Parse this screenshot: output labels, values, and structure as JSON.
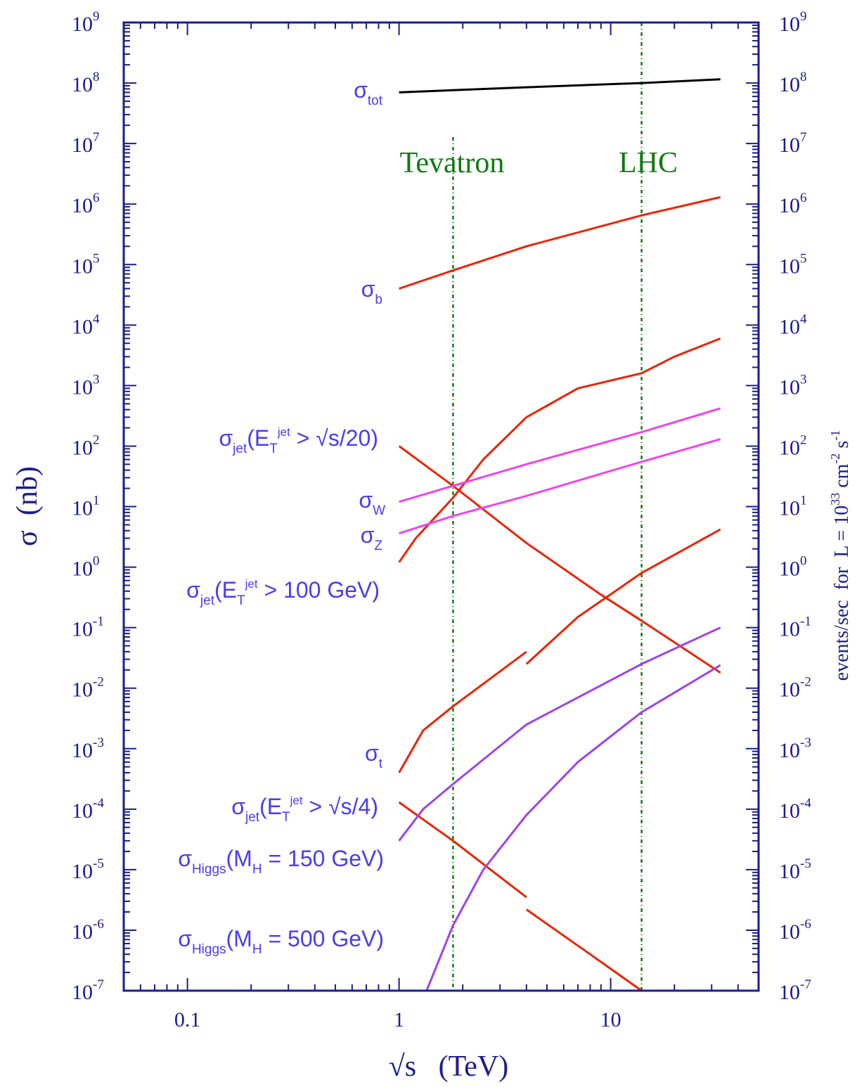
{
  "chart_data": {
    "type": "line",
    "scale": {
      "x": "log",
      "y": "log"
    },
    "xlim": [
      0.05,
      50
    ],
    "ylim": [
      1e-07,
      1000000000.0
    ],
    "xlabel": "√s   (TeV)",
    "ylabel": "σ  (nb)",
    "ylabel_right": "events/sec  for  L = 10^33 cm^-2 s^-1",
    "x_ticks": [
      {
        "value": 0.1,
        "label": "0.1"
      },
      {
        "value": 1,
        "label": "1"
      },
      {
        "value": 10,
        "label": "10"
      }
    ],
    "y_ticks": [
      {
        "value": 1000000000.0,
        "base": "10",
        "exp": "9"
      },
      {
        "value": 100000000.0,
        "base": "10",
        "exp": "8"
      },
      {
        "value": 10000000.0,
        "base": "10",
        "exp": "7"
      },
      {
        "value": 1000000.0,
        "base": "10",
        "exp": "6"
      },
      {
        "value": 100000.0,
        "base": "10",
        "exp": "5"
      },
      {
        "value": 10000.0,
        "base": "10",
        "exp": "4"
      },
      {
        "value": 1000.0,
        "base": "10",
        "exp": "3"
      },
      {
        "value": 100.0,
        "base": "10",
        "exp": "2"
      },
      {
        "value": 10.0,
        "base": "10",
        "exp": "1"
      },
      {
        "value": 1.0,
        "base": "10",
        "exp": "0"
      },
      {
        "value": 0.1,
        "base": "10",
        "exp": "-1"
      },
      {
        "value": 0.01,
        "base": "10",
        "exp": "-2"
      },
      {
        "value": 0.001,
        "base": "10",
        "exp": "-3"
      },
      {
        "value": 0.0001,
        "base": "10",
        "exp": "-4"
      },
      {
        "value": 1e-05,
        "base": "10",
        "exp": "-5"
      },
      {
        "value": 1e-06,
        "base": "10",
        "exp": "-6"
      },
      {
        "value": 1e-07,
        "base": "10",
        "exp": "-7"
      }
    ],
    "vertical_lines": [
      {
        "label": "Tevatron",
        "x": 1.8,
        "color": "#0e7a0e"
      },
      {
        "label": "LHC",
        "x": 14,
        "color": "#0e7a0e"
      }
    ],
    "series": [
      {
        "color": "#000000",
        "segments": [
          [
            [
              1,
              70000000.0
            ],
            [
              1.8,
              76000000.0
            ],
            [
              4,
              85000000.0
            ],
            [
              14,
              100000000.0
            ],
            [
              33,
              115000000.0
            ]
          ]
        ]
      },
      {
        "color": "#ee2200",
        "segments": [
          [
            [
              1,
              40000.0
            ],
            [
              1.8,
              80000.0
            ],
            [
              4,
              200000.0
            ],
            [
              14,
              650000.0
            ],
            [
              33,
              1300000.0
            ]
          ]
        ]
      },
      {
        "color": "#ee2200",
        "segments": [
          [
            [
              1,
              1.2
            ],
            [
              1.2,
              3
            ],
            [
              1.8,
              14
            ],
            [
              2.5,
              60
            ],
            [
              4,
              300
            ],
            [
              7,
              900
            ],
            [
              14,
              1600.0
            ],
            [
              20,
              3000.0
            ],
            [
              33,
              6000.0
            ]
          ]
        ]
      },
      {
        "color": "#ee2200",
        "segments": [
          [
            [
              1,
              100
            ],
            [
              1.8,
              22
            ],
            [
              4,
              2.5
            ],
            [
              9,
              0.35
            ],
            [
              14,
              0.13
            ],
            [
              33,
              0.018
            ]
          ]
        ]
      },
      {
        "color": "#ee44ee",
        "segments": [
          [
            [
              1,
              12
            ],
            [
              1.8,
              22
            ],
            [
              4,
              50
            ],
            [
              14,
              170
            ],
            [
              33,
              420
            ]
          ]
        ]
      },
      {
        "color": "#ee44ee",
        "segments": [
          [
            [
              1,
              3.6
            ],
            [
              1.8,
              7
            ],
            [
              4,
              15
            ],
            [
              14,
              55
            ],
            [
              33,
              130
            ]
          ]
        ]
      },
      {
        "color": "#ee2200",
        "segments": [
          [
            [
              1,
              0.0004
            ],
            [
              1.3,
              0.002
            ],
            [
              1.8,
              0.005
            ],
            [
              4,
              0.04
            ]
          ],
          [
            [
              4,
              0.025
            ],
            [
              7,
              0.15
            ],
            [
              14,
              0.8
            ],
            [
              33,
              4.2
            ]
          ]
        ]
      },
      {
        "color": "#ee2200",
        "segments": [
          [
            [
              1,
              0.00013
            ],
            [
              1.8,
              3e-05
            ],
            [
              4,
              3.5e-06
            ]
          ],
          [
            [
              4,
              2.2e-06
            ],
            [
              8,
              4e-07
            ],
            [
              14,
              1e-07
            ]
          ]
        ]
      },
      {
        "color": "#9a44ee",
        "segments": [
          [
            [
              1,
              3e-05
            ],
            [
              1.3,
              0.0001
            ],
            [
              1.8,
              0.00026
            ],
            [
              4,
              0.0025
            ],
            [
              14,
              0.025
            ],
            [
              33,
              0.1
            ]
          ]
        ]
      },
      {
        "color": "#9a44ee",
        "segments": [
          [
            [
              1.35,
              1e-07
            ],
            [
              1.8,
              1.2e-06
            ],
            [
              2.5,
              1e-05
            ],
            [
              4,
              8e-05
            ],
            [
              7,
              0.0006
            ],
            [
              14,
              0.004
            ],
            [
              33,
              0.024
            ]
          ]
        ]
      }
    ],
    "curve_labels": [
      {
        "main": "σ",
        "sub": "tot",
        "rest": ""
      },
      {
        "main": "σ",
        "sub": "b",
        "rest": ""
      },
      {
        "main": "σ",
        "sub": "jet",
        "mid": "(E",
        "sub2": "T",
        "sup": "jet",
        "rest": " > √s/20)"
      },
      {
        "main": "σ",
        "sub": "W",
        "rest": ""
      },
      {
        "main": "σ",
        "sub": "Z",
        "rest": ""
      },
      {
        "main": "σ",
        "sub": "jet",
        "mid": "(E",
        "sub2": "T",
        "sup": "jet",
        "rest": " > 100 GeV)"
      },
      {
        "main": "σ",
        "sub": "t",
        "rest": ""
      },
      {
        "main": "σ",
        "sub": "jet",
        "mid": "(E",
        "sub2": "T",
        "sup": "jet",
        "rest": " > √s/4)"
      },
      {
        "main": "σ",
        "sub": "Higgs",
        "mid": "(M",
        "sub2": "H",
        "rest": " = 150 GeV)"
      },
      {
        "main": "σ",
        "sub": "Higgs",
        "mid": "(M",
        "sub2": "H",
        "rest": " = 500 GeV)"
      }
    ]
  }
}
